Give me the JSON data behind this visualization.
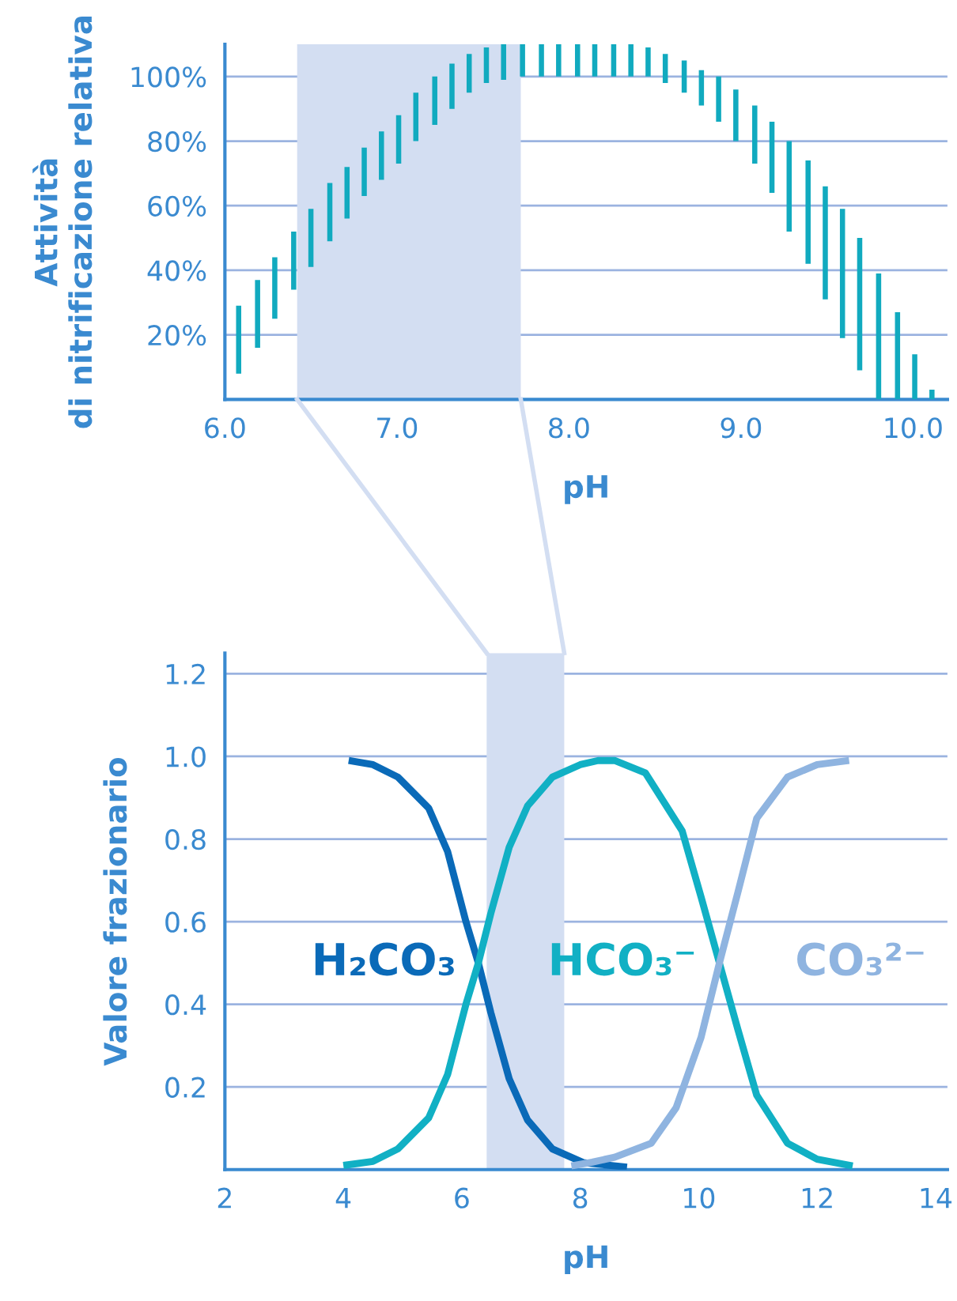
{
  "chart_data": [
    {
      "type": "bar",
      "xlabel": "pH",
      "ylabel": "Attività\ndi nitrificazione relativa",
      "x": [
        6.08,
        6.19,
        6.29,
        6.4,
        6.5,
        6.61,
        6.71,
        6.81,
        6.91,
        7.01,
        7.11,
        7.22,
        7.32,
        7.42,
        7.52,
        7.62,
        7.73,
        7.84,
        7.94,
        8.05,
        8.15,
        8.26,
        8.36,
        8.46,
        8.56,
        8.67,
        8.77,
        8.87,
        8.97,
        9.08,
        9.18,
        9.28,
        9.39,
        9.49,
        9.59,
        9.69,
        9.8,
        9.91,
        10.01,
        10.11
      ],
      "base": [
        8,
        16,
        25,
        34,
        41,
        49,
        56,
        63,
        68,
        73,
        80,
        85,
        90,
        95,
        98,
        99,
        100,
        100,
        100,
        100,
        100,
        100,
        100,
        100,
        98,
        95,
        91,
        86,
        80,
        73,
        64,
        52,
        42,
        31,
        19,
        9,
        0,
        0,
        0,
        0
      ],
      "values": [
        21,
        21,
        19,
        18,
        18,
        18,
        16,
        15,
        15,
        15,
        15,
        15,
        14,
        12,
        11,
        11,
        10,
        10,
        10,
        10,
        10,
        10,
        10,
        9,
        9,
        10,
        11,
        14,
        16,
        18,
        22,
        28,
        32,
        35,
        40,
        41,
        39,
        27,
        14,
        3
      ],
      "color": "#11aabf",
      "xlim": [
        6.0,
        10.2
      ],
      "ylim": [
        0,
        110
      ],
      "xticks": [
        {
          "value": 6,
          "label": "6.0"
        },
        {
          "value": 7,
          "label": "7.0"
        },
        {
          "value": 8,
          "label": "8.0"
        },
        {
          "value": 9,
          "label": "9.0"
        },
        {
          "value": 10,
          "label": "10.0"
        }
      ],
      "yticks": [
        {
          "value": 20,
          "label": "20%"
        },
        {
          "value": 40,
          "label": "40%"
        },
        {
          "value": 60,
          "label": "60%"
        },
        {
          "value": 80,
          "label": "80%"
        },
        {
          "value": 100,
          "label": "100%"
        }
      ],
      "bands": [
        {
          "axis": "x",
          "from": 6.42,
          "to": 7.72,
          "color": "#d3def2"
        }
      ],
      "grid": "y",
      "legend": false
    },
    {
      "type": "line",
      "xlabel": "pH",
      "ylabel": "Valore frazionario",
      "series": [
        {
          "name": "H₂CO₃",
          "color": "#0a6ab8",
          "x": [
            4.09,
            4.5,
            4.92,
            5.44,
            5.76,
            6.07,
            6.28,
            6.49,
            6.8,
            7.11,
            7.53,
            8.05,
            8.79
          ],
          "values": [
            0.99,
            0.98,
            0.95,
            0.875,
            0.77,
            0.6,
            0.5,
            0.38,
            0.22,
            0.12,
            0.05,
            0.017,
            0.006
          ]
        },
        {
          "name": "HCO₃⁻",
          "color": "#11b0c4",
          "x": [
            4.0,
            4.5,
            4.92,
            5.44,
            5.76,
            6.07,
            6.28,
            6.49,
            6.8,
            7.11,
            7.53,
            8.0,
            8.3,
            8.58,
            9.1,
            9.72,
            10.04,
            10.35,
            10.66,
            10.98,
            11.5,
            12.0,
            12.6
          ],
          "values": [
            0.01,
            0.02,
            0.05,
            0.125,
            0.23,
            0.4,
            0.5,
            0.62,
            0.78,
            0.88,
            0.95,
            0.98,
            0.99,
            0.99,
            0.96,
            0.82,
            0.66,
            0.5,
            0.34,
            0.18,
            0.064,
            0.025,
            0.009
          ]
        },
        {
          "name": "CO₃²⁻",
          "color": "#8fb4e0",
          "x": [
            7.85,
            8.2,
            8.58,
            9.2,
            9.62,
            10.04,
            10.35,
            10.66,
            10.98,
            11.5,
            12.0,
            12.54
          ],
          "values": [
            0.009,
            0.018,
            0.03,
            0.064,
            0.15,
            0.32,
            0.5,
            0.67,
            0.85,
            0.95,
            0.98,
            0.99
          ]
        }
      ],
      "xlim": [
        2,
        14.2
      ],
      "ylim": [
        0,
        1.25
      ],
      "xticks": [
        2,
        4,
        6,
        8,
        10,
        12,
        14
      ],
      "yticks": [
        {
          "value": 0.2,
          "label": "0.2"
        },
        {
          "value": 0.4,
          "label": "0.4"
        },
        {
          "value": 0.6,
          "label": "0.6"
        },
        {
          "value": 0.8,
          "label": "0.8"
        },
        {
          "value": 1.0,
          "label": "1.0"
        },
        {
          "value": 1.2,
          "label": "1.2"
        }
      ],
      "bands": [
        {
          "axis": "x",
          "from": 6.42,
          "to": 7.73,
          "color": "#d3def2"
        }
      ],
      "grid": "y",
      "legend": false,
      "marker": "none",
      "line_style": "solid"
    }
  ]
}
